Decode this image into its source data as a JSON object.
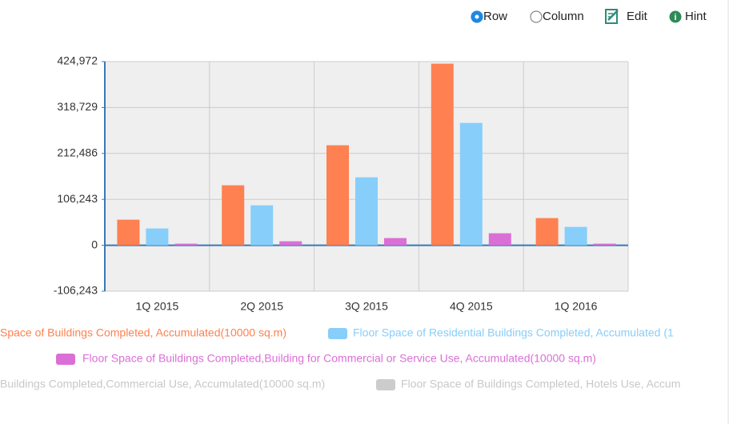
{
  "toolbar": {
    "options": [
      {
        "label": "Row",
        "checked": true
      },
      {
        "label": "Column",
        "checked": false
      }
    ],
    "actions": [
      "Edit",
      "Hint"
    ]
  },
  "chart_data": {
    "type": "bar",
    "categories": [
      "1Q 2015",
      "2Q 2015",
      "3Q 2015",
      "4Q 2015",
      "1Q 2016"
    ],
    "series": [
      {
        "name": "Space of Buildings Completed, Accumulated(10000 sq.m)",
        "color": "#ff8050",
        "visible": true,
        "values": [
          59200,
          138800,
          231400,
          420200,
          62900
        ]
      },
      {
        "name": "Floor Space of Residential Buildings Completed, Accumulated (1",
        "color": "#87cefa",
        "visible": true,
        "values": [
          38900,
          92500,
          157300,
          283200,
          42600
        ]
      },
      {
        "name": "Floor Space of Buildings Completed,Building for Commercial or Service Use, Accumulated(10000 sq.m)",
        "color": "#da70d6",
        "visible": true,
        "values": [
          3700,
          9300,
          16700,
          27800,
          3700
        ]
      },
      {
        "name": "Buildings Completed,Commercial Use, Accumulated(10000 sq.m)",
        "color": "#cccccc",
        "visible": false,
        "values": [
          null,
          null,
          null,
          null,
          null
        ]
      },
      {
        "name": "Floor Space of Buildings Completed, Hotels Use, Accum",
        "color": "#cccccc",
        "visible": false,
        "values": [
          null,
          null,
          null,
          null,
          null
        ]
      }
    ],
    "ylim": [
      -106243,
      424972
    ],
    "yticks": [
      {
        "value": -106243,
        "label": "-106,243"
      },
      0,
      {
        "value": 106243,
        "label": "106,243"
      },
      {
        "value": 212486,
        "label": "212,486"
      },
      {
        "value": 318729,
        "label": "318,729"
      },
      {
        "value": 424972,
        "label": "424,972"
      }
    ],
    "grid": true
  }
}
